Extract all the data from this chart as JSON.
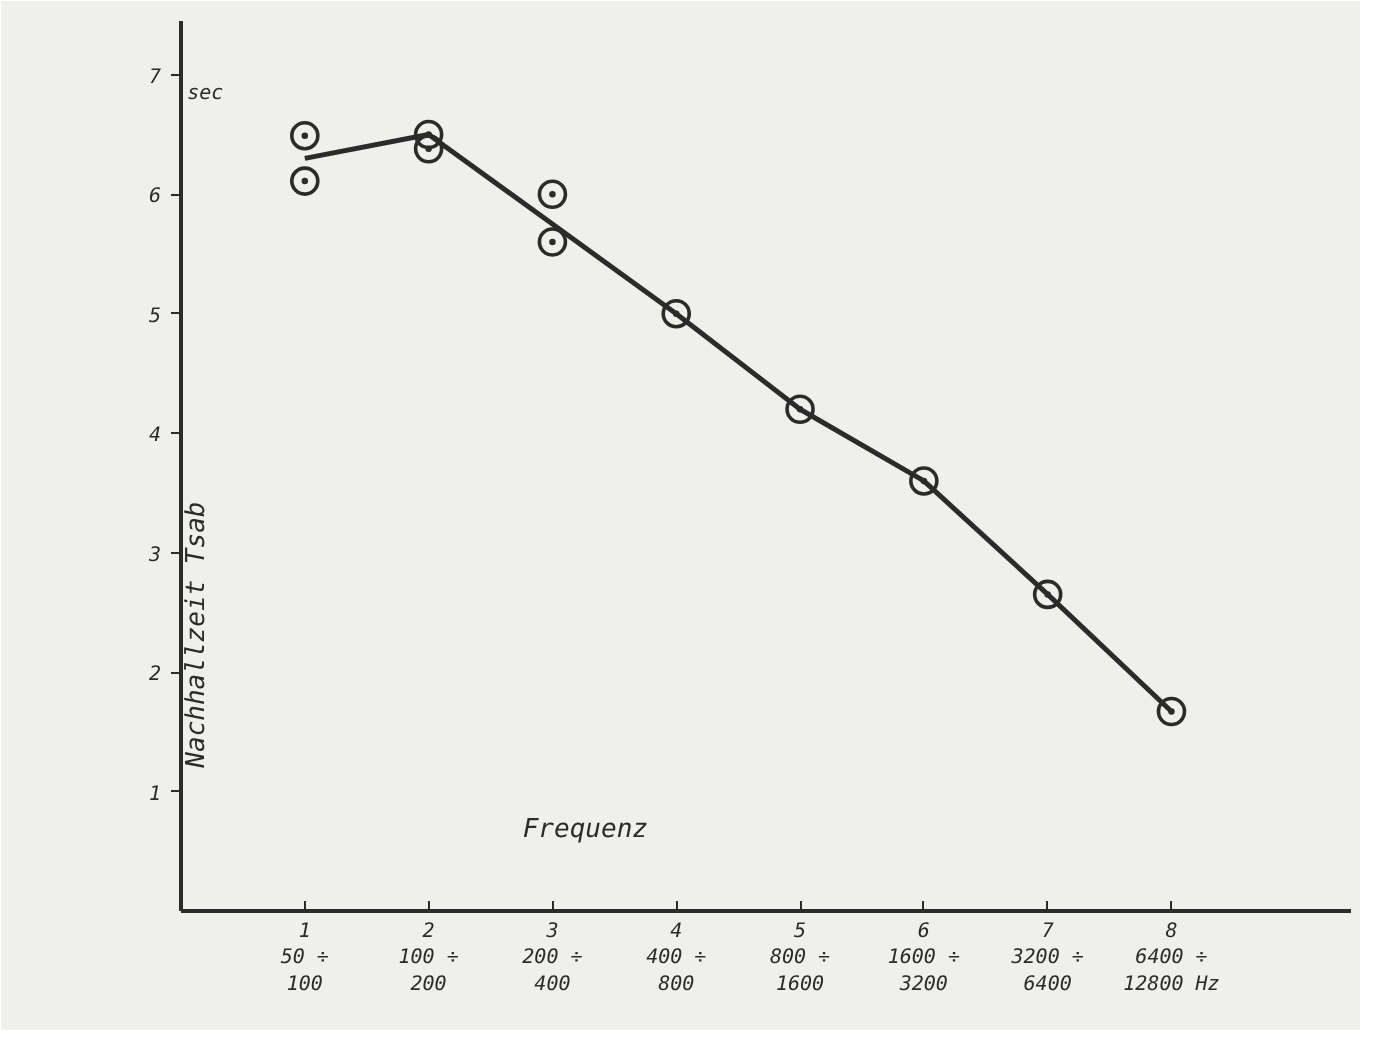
{
  "chart_data": {
    "type": "line",
    "xlabel": "Frequenz",
    "ylabel": "Nachhallzeit   Tsab",
    "annotations": [
      "sec"
    ],
    "categories": [
      "1\n50 ÷\n100",
      "2\n100 ÷\n200",
      "3\n200 ÷\n400",
      "4\n400 ÷\n800",
      "5\n800 ÷\n1600",
      "6\n1600 ÷\n3200",
      "7\n3200 ÷\n6400",
      "8\n6400 ÷\n12800 Hz"
    ],
    "series": [
      {
        "color": "#2b2b2b",
        "values": [
          6.3,
          6.5,
          5.75,
          5.0,
          4.2,
          3.6,
          2.65,
          1.67
        ],
        "marker": "none",
        "line_style": "solid"
      },
      {
        "type": "scatter",
        "color": "#2b2b2b",
        "values": [
          6.49,
          6.5,
          6.0,
          5.0,
          4.2,
          3.6,
          2.65,
          1.67
        ],
        "marker": "circle"
      },
      {
        "type": "scatter",
        "color": "#2b2b2b",
        "values": [
          6.11,
          6.38,
          5.6,
          null,
          null,
          null,
          null,
          null
        ],
        "marker": "circle"
      }
    ],
    "ylim": [
      0,
      7.45
    ],
    "yticks": [
      1,
      2,
      3,
      4,
      5,
      6,
      7
    ],
    "grid": false
  }
}
